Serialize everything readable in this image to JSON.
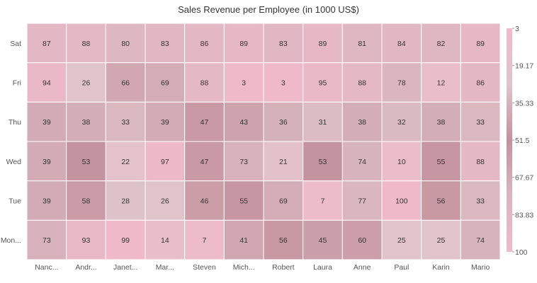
{
  "chart_data": {
    "type": "heatmap",
    "title": "Sales Revenue per Employee (in 1000 US$)",
    "x_labels": [
      "Nanc...",
      "Andr...",
      "Janet...",
      "Mar...",
      "Steven",
      "Mich...",
      "Robert",
      "Laura",
      "Anne",
      "Paul",
      "Karin",
      "Mario"
    ],
    "y_labels": [
      "Sat",
      "Fri",
      "Thu",
      "Wed",
      "Tue",
      "Mon..."
    ],
    "values": [
      [
        87,
        88,
        80,
        83,
        86,
        89,
        83,
        89,
        81,
        84,
        82,
        89
      ],
      [
        94,
        26,
        66,
        69,
        88,
        3,
        3,
        95,
        88,
        78,
        12,
        86
      ],
      [
        39,
        38,
        33,
        39,
        47,
        43,
        36,
        31,
        38,
        32,
        38,
        33
      ],
      [
        39,
        53,
        22,
        97,
        47,
        73,
        21,
        53,
        74,
        10,
        55,
        88
      ],
      [
        39,
        58,
        28,
        26,
        46,
        55,
        69,
        7,
        77,
        100,
        56,
        33
      ],
      [
        73,
        93,
        99,
        14,
        7,
        41,
        56,
        45,
        60,
        25,
        25,
        74
      ]
    ],
    "value_range": [
      3,
      100
    ],
    "legend": {
      "position": "right",
      "labels": [
        "3",
        "19.17",
        "35.33",
        "51.5",
        "67.67",
        "83.83",
        "100"
      ]
    },
    "colors": {
      "low": "#f0b9c9",
      "mid_low": "#dfc4cb",
      "mid": "#c4919d",
      "mid_high": "#d9b6c0",
      "high": "#f0b9c9",
      "grid": "#ffffff"
    }
  }
}
